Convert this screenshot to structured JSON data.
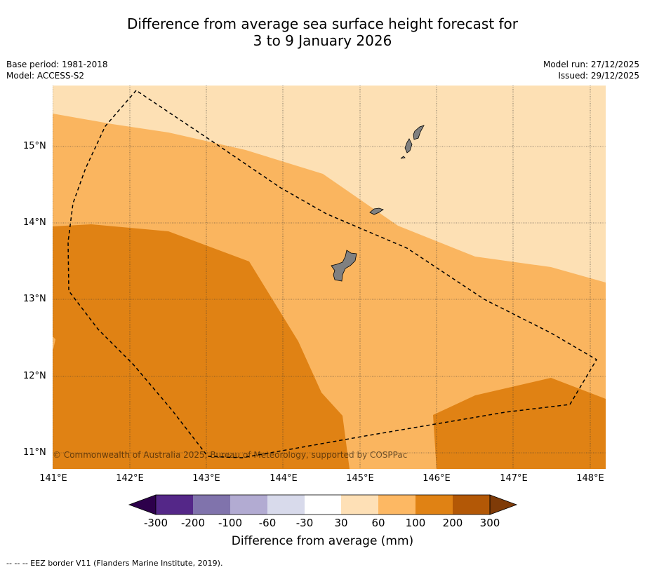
{
  "title": {
    "line1": "Difference from average sea surface height forecast for",
    "line2": "3 to 9 January 2026"
  },
  "meta": {
    "base_period": "Base period: 1981-2018",
    "model": "Model: ACCESS-S2",
    "model_run": "Model run: 27/12/2025",
    "issued": "Issued: 29/12/2025"
  },
  "map": {
    "copyright": "© Commonwealth of Australia 2025, Bureau of Meteorology, supported by COSPPac",
    "lat_labels": [
      "15°N",
      "14°N",
      "13°N",
      "12°N",
      "11°N"
    ],
    "lon_labels": [
      "141°E",
      "142°E",
      "143°E",
      "144°E",
      "145°E",
      "146°E",
      "147°E",
      "148°E"
    ],
    "colors": {
      "band_30_60": "#fde0b4",
      "band_60_100": "#fab55f",
      "band_100_200": "#e08214",
      "land": "#808080"
    }
  },
  "colorbar": {
    "title": "Difference from average (mm)",
    "ticks": [
      "-300",
      "-200",
      "-100",
      "-60",
      "-30",
      "30",
      "60",
      "100",
      "200",
      "300"
    ],
    "colors": [
      "#2d004b",
      "#542788",
      "#8073ac",
      "#b2abd2",
      "#d8daeb",
      "#ffffff",
      "#fee0b6",
      "#fdb863",
      "#e08214",
      "#b35806",
      "#7f3b08"
    ]
  },
  "legend": {
    "eez": "--  --  -- EEZ border V11 (Flanders Marine Institute, 2019)."
  }
}
